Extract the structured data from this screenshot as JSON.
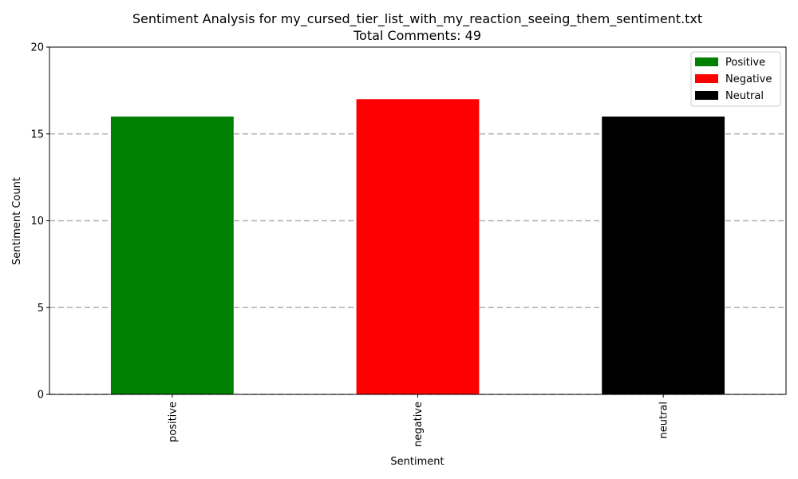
{
  "chart_data": {
    "type": "bar",
    "title_line1": "Sentiment Analysis for my_cursed_tier_list_with_my_reaction_seeing_them_sentiment.txt",
    "title_line2": "Total Comments: 49",
    "xlabel": "Sentiment",
    "ylabel": "Sentiment Count",
    "categories": [
      "positive",
      "negative",
      "neutral"
    ],
    "values": [
      16,
      17,
      16
    ],
    "colors": [
      "#008000",
      "#ff0000",
      "#000000"
    ],
    "ylim": [
      0,
      20
    ],
    "yticks": [
      0,
      5,
      10,
      15,
      20
    ],
    "grid": "horizontal dashed",
    "legend": {
      "placement": "top-right",
      "entries": [
        {
          "label": "Positive",
          "color": "#008000"
        },
        {
          "label": "Negative",
          "color": "#ff0000"
        },
        {
          "label": "Neutral",
          "color": "#000000"
        }
      ]
    }
  }
}
